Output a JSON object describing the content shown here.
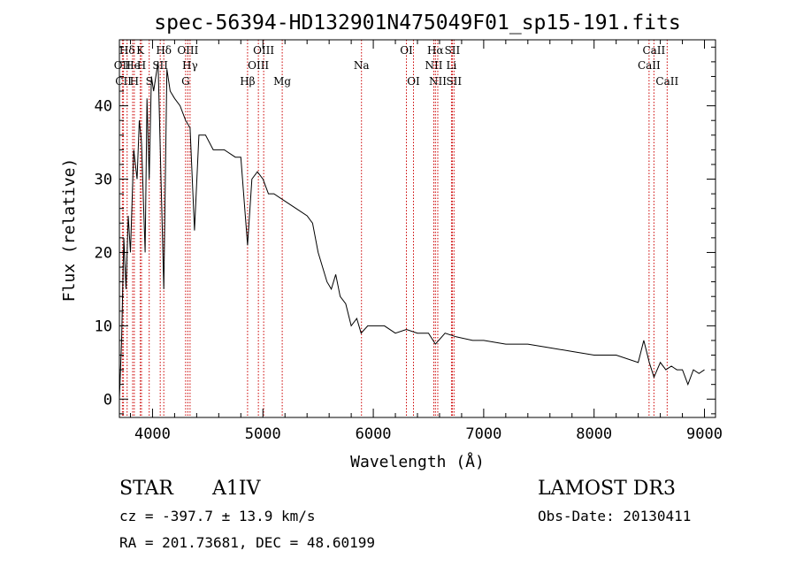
{
  "chart_data": {
    "type": "line",
    "title": "spec-56394-HD132901N475049F01_sp15-191.fits",
    "xlabel": "Wavelength (Å)",
    "ylabel": "Flux (relative)",
    "xlim": [
      3700,
      9100
    ],
    "ylim": [
      -2.5,
      49
    ],
    "xticks": [
      4000,
      5000,
      6000,
      7000,
      8000,
      9000
    ],
    "yticks": [
      0,
      10,
      20,
      30,
      40
    ],
    "xtick_labels": [
      "4000",
      "5000",
      "6000",
      "7000",
      "8000",
      "9000"
    ],
    "ytick_labels": [
      "0",
      "10",
      "20",
      "30",
      "40"
    ],
    "series": [
      {
        "name": "flux",
        "x": [
          3700,
          3720,
          3740,
          3760,
          3780,
          3800,
          3830,
          3860,
          3880,
          3900,
          3933,
          3950,
          3970,
          3990,
          4010,
          4050,
          4102,
          4130,
          4160,
          4200,
          4250,
          4300,
          4340,
          4380,
          4420,
          4480,
          4550,
          4650,
          4750,
          4800,
          4861,
          4900,
          4950,
          5000,
          5050,
          5100,
          5200,
          5300,
          5400,
          5450,
          5500,
          5540,
          5580,
          5620,
          5660,
          5700,
          5750,
          5800,
          5850,
          5890,
          5950,
          6000,
          6100,
          6200,
          6300,
          6400,
          6500,
          6563,
          6650,
          6750,
          6900,
          7000,
          7200,
          7400,
          7600,
          7800,
          8000,
          8200,
          8400,
          8450,
          8500,
          8542,
          8600,
          8650,
          8700,
          8750,
          8800,
          8850,
          8900,
          8950,
          9000
        ],
        "y": [
          0,
          8,
          22,
          15,
          25,
          20,
          34,
          30,
          38,
          35,
          20,
          41,
          30,
          44,
          42,
          46,
          15,
          45,
          42,
          41,
          40,
          38,
          37,
          23,
          36,
          36,
          34,
          34,
          33,
          33,
          21,
          30,
          31,
          30,
          28,
          28,
          27,
          26,
          25,
          24,
          20,
          18,
          16,
          15,
          17,
          14,
          13,
          10,
          11,
          9,
          10,
          10,
          10,
          9,
          9.5,
          9,
          9,
          7.5,
          9,
          8.5,
          8,
          8,
          7.5,
          7.5,
          7,
          6.5,
          6,
          6,
          5,
          8,
          5,
          3,
          5,
          4,
          4.5,
          4,
          4,
          2,
          4,
          3.5,
          4
        ]
      }
    ],
    "lines": [
      {
        "label": "Hδ",
        "w": 3770,
        "row": 1
      },
      {
        "label": "OII",
        "w": 3727,
        "row": 2
      },
      {
        "label": "CII",
        "w": 3737,
        "row": 3
      },
      {
        "label": "He",
        "w": 3820,
        "row": 2
      },
      {
        "label": "H",
        "w": 3835,
        "row": 3
      },
      {
        "label": "K",
        "w": 3889,
        "row": 1
      },
      {
        "label": "H",
        "w": 3900,
        "row": 2
      },
      {
        "label": "S",
        "w": 3970,
        "row": 3
      },
      {
        "label": "SII",
        "w": 4070,
        "row": 2
      },
      {
        "label": "Hδ",
        "w": 4102,
        "row": 1
      },
      {
        "label": "OIII",
        "w": 4320,
        "row": 1
      },
      {
        "label": "Hγ",
        "w": 4340,
        "row": 2
      },
      {
        "label": "G",
        "w": 4300,
        "row": 3
      },
      {
        "label": "Hβ",
        "w": 4861,
        "row": 3
      },
      {
        "label": "OIII",
        "w": 4959,
        "row": 2
      },
      {
        "label": "OIII",
        "w": 5007,
        "row": 1
      },
      {
        "label": "Mg",
        "w": 5175,
        "row": 3
      },
      {
        "label": "Na",
        "w": 5893,
        "row": 2
      },
      {
        "label": "OI",
        "w": 6300,
        "row": 1
      },
      {
        "label": "OI",
        "w": 6364,
        "row": 3
      },
      {
        "label": "Hα",
        "w": 6563,
        "row": 1
      },
      {
        "label": "NII",
        "w": 6548,
        "row": 2
      },
      {
        "label": "NII",
        "w": 6584,
        "row": 3
      },
      {
        "label": "SII",
        "w": 6716,
        "row": 1
      },
      {
        "label": "SII",
        "w": 6731,
        "row": 3
      },
      {
        "label": "Li",
        "w": 6708,
        "row": 2
      },
      {
        "label": "CaII",
        "w": 8542,
        "row": 1
      },
      {
        "label": "CaII",
        "w": 8498,
        "row": 2
      },
      {
        "label": "CaII",
        "w": 8662,
        "row": 3
      }
    ]
  },
  "info": {
    "object_type": "STAR",
    "subclass": "A1IV",
    "survey": "LAMOST DR3",
    "cz": "cz = -397.7 ± 13.9 km/s",
    "obs_date": "Obs-Date: 20130411",
    "radec": "RA = 201.73681, DEC =  48.60199"
  },
  "colors": {
    "spectrum": "#000000",
    "line_markers": "#cc0000",
    "text": "#000000"
  }
}
